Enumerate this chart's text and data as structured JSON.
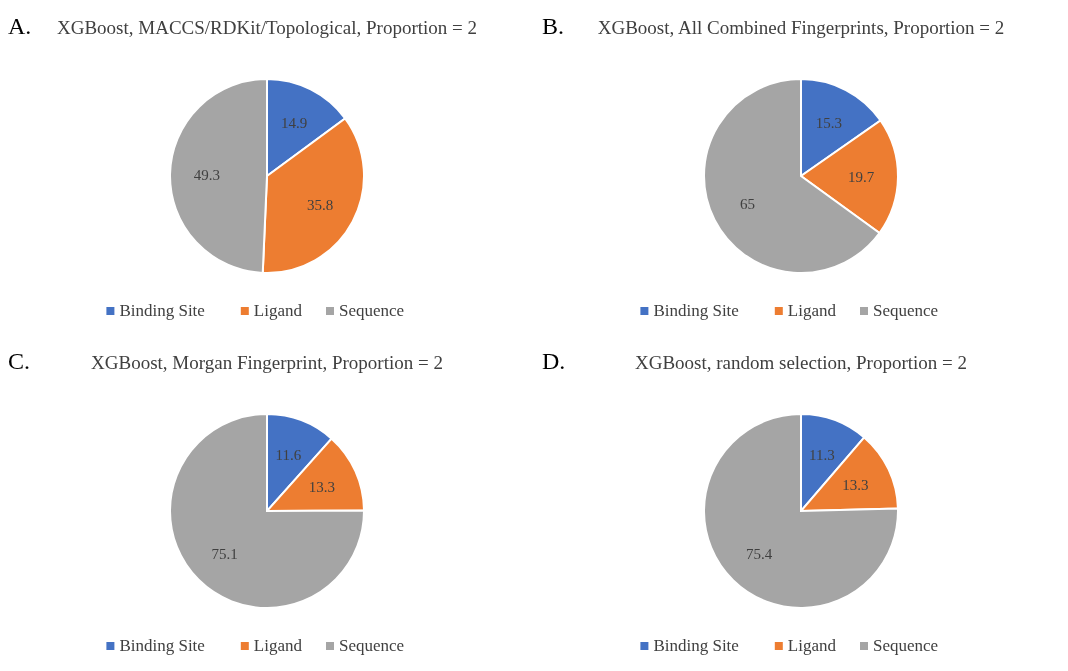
{
  "chart_data": [
    {
      "type": "pie",
      "title": "XGBoost, MACCS/RDKit/Topological, Proportion = 2",
      "annotations": [
        "A."
      ],
      "categories": [
        "Binding Site",
        "Ligand",
        "Sequence"
      ],
      "values": [
        14.9,
        35.8,
        49.3
      ],
      "colors": [
        "#4472c4",
        "#ed7d31",
        "#a5a5a5"
      ],
      "data_labels": true,
      "legend": "bottom"
    },
    {
      "type": "pie",
      "title": "XGBoost, All Combined Fingerprints, Proportion = 2",
      "annotations": [
        "B."
      ],
      "categories": [
        "Binding Site",
        "Ligand",
        "Sequence"
      ],
      "values": [
        15.3,
        19.7,
        65
      ],
      "colors": [
        "#4472c4",
        "#ed7d31",
        "#a5a5a5"
      ],
      "data_labels": true,
      "legend": "bottom"
    },
    {
      "type": "pie",
      "title": "XGBoost, Morgan Fingerprint, Proportion = 2",
      "annotations": [
        "C."
      ],
      "categories": [
        "Binding Site",
        "Ligand",
        "Sequence"
      ],
      "values": [
        11.6,
        13.3,
        75.1
      ],
      "colors": [
        "#4472c4",
        "#ed7d31",
        "#a5a5a5"
      ],
      "data_labels": true,
      "legend": "bottom"
    },
    {
      "type": "pie",
      "title": "XGBoost, random selection, Proportion = 2",
      "annotations": [
        "D."
      ],
      "categories": [
        "Binding Site",
        "Ligand",
        "Sequence"
      ],
      "values": [
        11.3,
        13.3,
        75.4
      ],
      "colors": [
        "#4472c4",
        "#ed7d31",
        "#a5a5a5"
      ],
      "data_labels": true,
      "legend": "bottom"
    }
  ]
}
